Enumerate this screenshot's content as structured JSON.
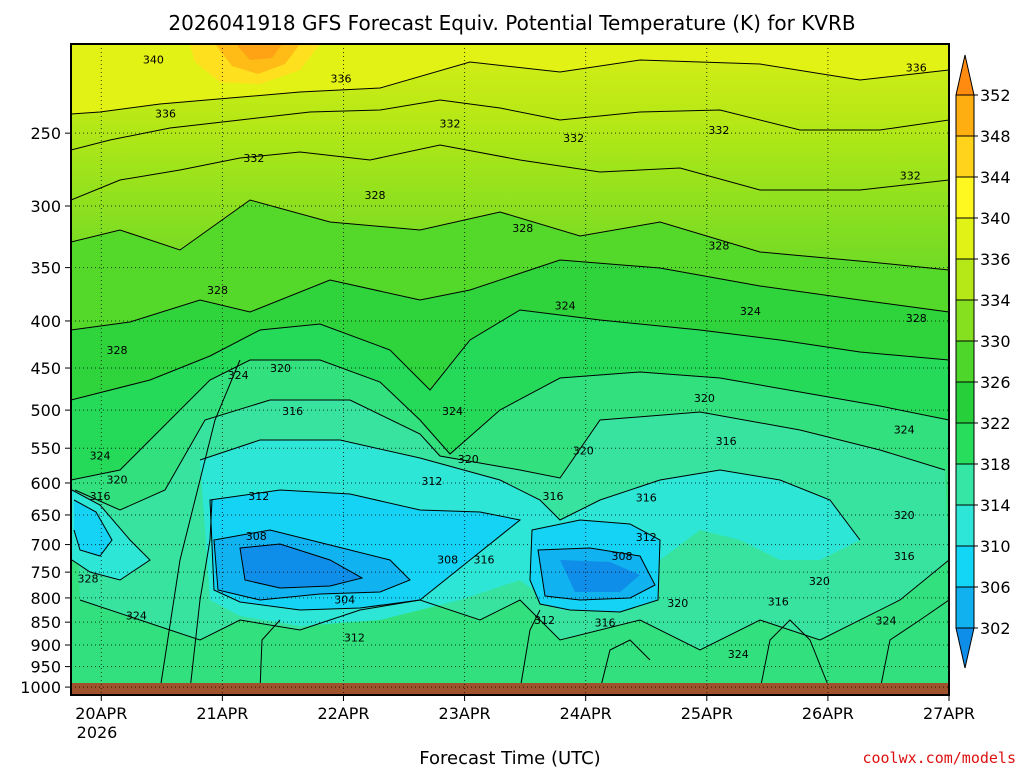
{
  "chart_data": {
    "type": "heatmap",
    "title": "2026041918 GFS Forecast Equiv. Potential Temperature (K) for KVRB",
    "xlabel": "Forecast Time (UTC)",
    "ylabel": "",
    "x_ticks": [
      "20APR",
      "21APR",
      "22APR",
      "23APR",
      "24APR",
      "25APR",
      "26APR",
      "27APR"
    ],
    "x_year": "2026",
    "x_range_days": [
      0,
      7.25
    ],
    "y_ticks": [
      250,
      300,
      350,
      400,
      450,
      500,
      550,
      600,
      650,
      700,
      750,
      800,
      850,
      900,
      950,
      1000
    ],
    "y_range_hpa": [
      200,
      1020
    ],
    "colorbar": {
      "levels": [
        302,
        306,
        310,
        314,
        318,
        322,
        326,
        330,
        334,
        336,
        340,
        344,
        348,
        352
      ],
      "colors": [
        "#0f8ee9",
        "#11b1f0",
        "#13d6f6",
        "#2ee6d8",
        "#35e6a4",
        "#29dd5c",
        "#27cf3a",
        "#4fd62b",
        "#86df1f",
        "#b5e816",
        "#e0f216",
        "#fff720",
        "#ffd21c",
        "#ffae12",
        "#ff8c10"
      ]
    },
    "contour_labels": [
      {
        "t": 0.68,
        "p": 208,
        "v": "340"
      },
      {
        "t": 0.78,
        "p": 238,
        "v": "336"
      },
      {
        "t": 2.23,
        "p": 218,
        "v": "336"
      },
      {
        "t": 1.51,
        "p": 266,
        "v": "332"
      },
      {
        "t": 3.13,
        "p": 244,
        "v": "332"
      },
      {
        "t": 4.15,
        "p": 253,
        "v": "332"
      },
      {
        "t": 5.35,
        "p": 248,
        "v": "332"
      },
      {
        "t": 6.93,
        "p": 278,
        "v": "332"
      },
      {
        "t": 6.98,
        "p": 212,
        "v": "336"
      },
      {
        "t": 2.51,
        "p": 292,
        "v": "328"
      },
      {
        "t": 3.73,
        "p": 317,
        "v": "328"
      },
      {
        "t": 5.35,
        "p": 331,
        "v": "328"
      },
      {
        "t": 1.21,
        "p": 370,
        "v": "328"
      },
      {
        "t": 0.38,
        "p": 430,
        "v": "328"
      },
      {
        "t": 6.98,
        "p": 397,
        "v": "328"
      },
      {
        "t": 4.08,
        "p": 385,
        "v": "324"
      },
      {
        "t": 5.61,
        "p": 390,
        "v": "324"
      },
      {
        "t": 1.38,
        "p": 458,
        "v": "324"
      },
      {
        "t": 1.73,
        "p": 450,
        "v": "320"
      },
      {
        "t": 1.83,
        "p": 501,
        "v": "316"
      },
      {
        "t": 3.15,
        "p": 501,
        "v": "324"
      },
      {
        "t": 3.28,
        "p": 565,
        "v": "320"
      },
      {
        "t": 4.23,
        "p": 553,
        "v": "320"
      },
      {
        "t": 5.23,
        "p": 485,
        "v": "320"
      },
      {
        "t": 5.41,
        "p": 540,
        "v": "316"
      },
      {
        "t": 6.88,
        "p": 525,
        "v": "324"
      },
      {
        "t": 6.88,
        "p": 650,
        "v": "320"
      },
      {
        "t": 6.88,
        "p": 720,
        "v": "316"
      },
      {
        "t": 0.24,
        "p": 560,
        "v": "324"
      },
      {
        "t": 0.38,
        "p": 595,
        "v": "320"
      },
      {
        "t": 0.24,
        "p": 620,
        "v": "316"
      },
      {
        "t": 1.55,
        "p": 620,
        "v": "312"
      },
      {
        "t": 2.98,
        "p": 597,
        "v": "312"
      },
      {
        "t": 3.98,
        "p": 620,
        "v": "316"
      },
      {
        "t": 4.75,
        "p": 622,
        "v": "316"
      },
      {
        "t": 1.53,
        "p": 685,
        "v": "308"
      },
      {
        "t": 4.75,
        "p": 687,
        "v": "312"
      },
      {
        "t": 4.55,
        "p": 720,
        "v": "308"
      },
      {
        "t": 3.11,
        "p": 727,
        "v": "308"
      },
      {
        "t": 3.41,
        "p": 727,
        "v": "316"
      },
      {
        "t": 2.26,
        "p": 803,
        "v": "304"
      },
      {
        "t": 0.14,
        "p": 762,
        "v": "328"
      },
      {
        "t": 0.54,
        "p": 836,
        "v": "324"
      },
      {
        "t": 2.34,
        "p": 883,
        "v": "312"
      },
      {
        "t": 3.91,
        "p": 845,
        "v": "312"
      },
      {
        "t": 4.41,
        "p": 851,
        "v": "316"
      },
      {
        "t": 5.01,
        "p": 810,
        "v": "320"
      },
      {
        "t": 6.18,
        "p": 767,
        "v": "320"
      },
      {
        "t": 5.84,
        "p": 807,
        "v": "316"
      },
      {
        "t": 6.73,
        "p": 847,
        "v": "324"
      },
      {
        "t": 5.51,
        "p": 920,
        "v": "324"
      }
    ]
  },
  "credit": "coolwx.com/models"
}
